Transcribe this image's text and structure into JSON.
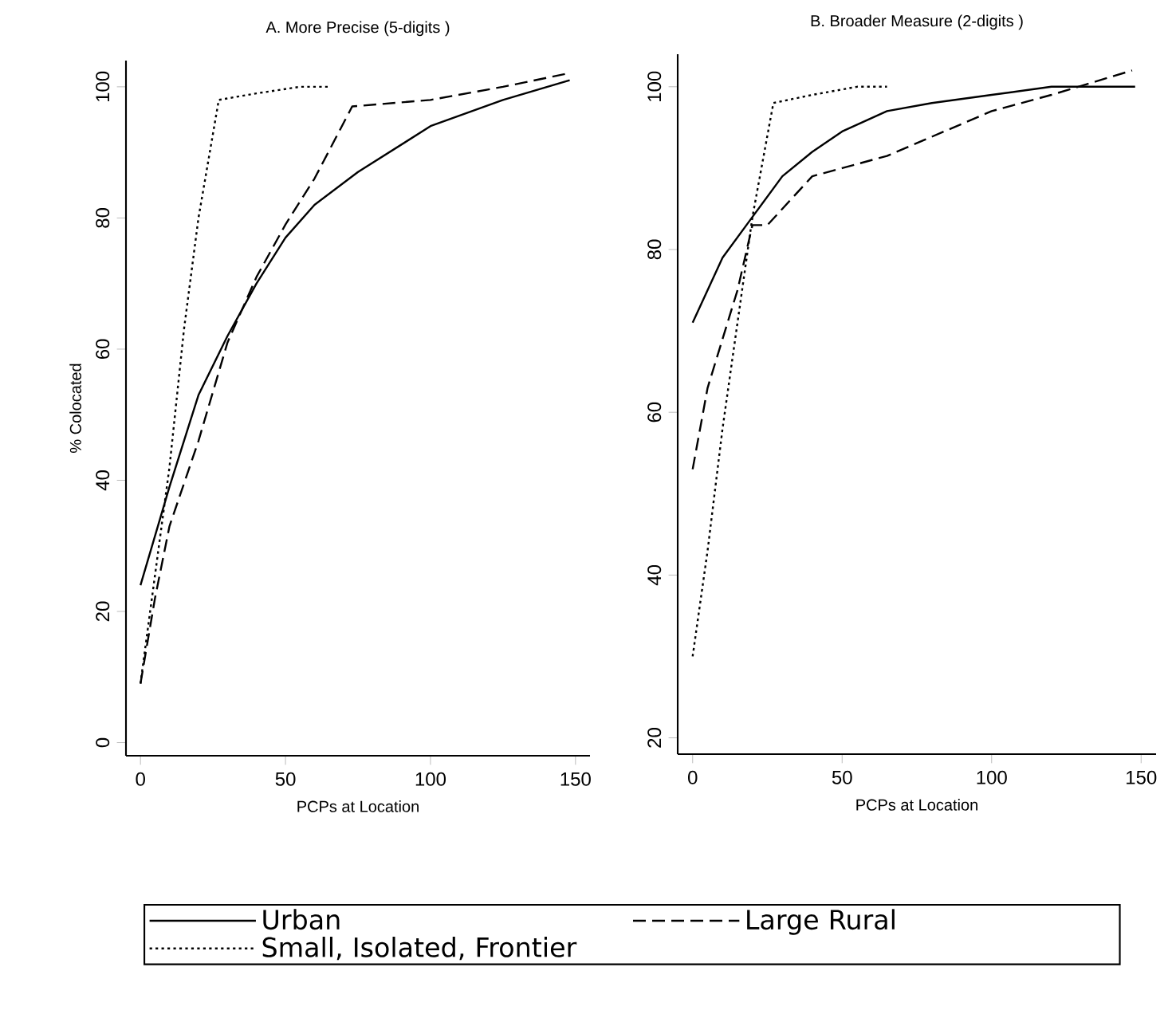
{
  "chart_data": [
    {
      "type": "line",
      "title": "A. More Precise (5-digits )",
      "xlabel": "PCPs at Location",
      "ylabel": "% Colocated",
      "xlim": [
        -5,
        155
      ],
      "ylim": [
        -2,
        104
      ],
      "xticks": [
        0,
        50,
        100,
        150
      ],
      "yticks": [
        0,
        20,
        40,
        60,
        80,
        100
      ],
      "grid": false,
      "legend": "bottom",
      "series": [
        {
          "name": "Urban",
          "color": "#000000",
          "line_style": "solid",
          "x": [
            0,
            10,
            20,
            30,
            40,
            50,
            60,
            75,
            100,
            125,
            148
          ],
          "values": [
            24,
            39,
            53,
            62,
            70,
            77,
            82,
            87,
            94,
            98,
            101
          ]
        },
        {
          "name": "Large Rural",
          "color": "#000000",
          "line_style": "dashed",
          "x": [
            0,
            5,
            10,
            20,
            30,
            40,
            50,
            60,
            73,
            100,
            125,
            147
          ],
          "values": [
            9,
            22,
            33,
            46,
            61,
            71,
            79,
            86,
            97,
            98,
            100,
            102
          ]
        },
        {
          "name": "Small, Isolated, Frontier",
          "color": "#000000",
          "line_style": "dotted",
          "x": [
            0,
            10,
            15,
            20,
            27,
            40,
            55,
            65
          ],
          "values": [
            9,
            42,
            63,
            80,
            98,
            99,
            100,
            100
          ]
        }
      ]
    },
    {
      "type": "line",
      "title": "B. Broader Measure (2-digits )",
      "xlabel": "PCPs at Location",
      "xlim": [
        -5,
        155
      ],
      "ylim": [
        18,
        104
      ],
      "xticks": [
        0,
        50,
        100,
        150
      ],
      "yticks": [
        20,
        40,
        60,
        80,
        100
      ],
      "grid": false,
      "series": [
        {
          "color": "#000000",
          "line_style": "solid",
          "x": [
            0,
            10,
            20,
            30,
            40,
            50,
            65,
            80,
            100,
            120,
            148
          ],
          "values": [
            71,
            79,
            84,
            89,
            92,
            94.5,
            97,
            98,
            99,
            100,
            100
          ]
        },
        {
          "color": "#000000",
          "line_style": "dashed",
          "x": [
            0,
            5,
            10,
            15,
            20,
            25,
            30,
            40,
            50,
            65,
            100,
            120,
            147
          ],
          "values": [
            53,
            63,
            69,
            75,
            83,
            83,
            85,
            89,
            90,
            91.5,
            97,
            99,
            102
          ]
        },
        {
          "color": "#000000",
          "line_style": "dotted",
          "x": [
            0,
            5,
            10,
            15,
            20,
            27,
            40,
            55,
            65
          ],
          "values": [
            30,
            43,
            58,
            71,
            84,
            98,
            99,
            100,
            100
          ]
        }
      ]
    }
  ]
}
